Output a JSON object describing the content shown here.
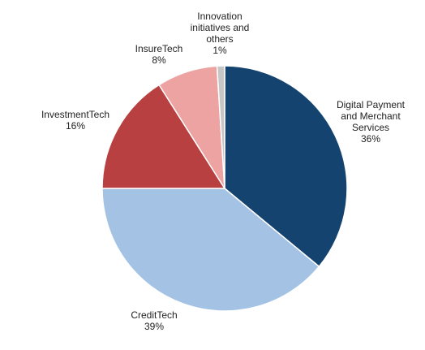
{
  "chart_data": {
    "type": "pie",
    "title": "",
    "slices": [
      {
        "label_lines": [
          "Digital Payment",
          "and Merchant",
          "Services"
        ],
        "value_label": "36%",
        "value": 36,
        "color": "#14436f"
      },
      {
        "label_lines": [
          "CreditTech"
        ],
        "value_label": "39%",
        "value": 39,
        "color": "#a3c2e4"
      },
      {
        "label_lines": [
          "InvestmentTech"
        ],
        "value_label": "16%",
        "value": 16,
        "color": "#b84041"
      },
      {
        "label_lines": [
          "InsureTech"
        ],
        "value_label": "8%",
        "value": 8,
        "color": "#eca3a2"
      },
      {
        "label_lines": [
          "Innovation",
          "initiatives and",
          "others"
        ],
        "value_label": "1%",
        "value": 1,
        "color": "#c6c6c6"
      }
    ]
  }
}
